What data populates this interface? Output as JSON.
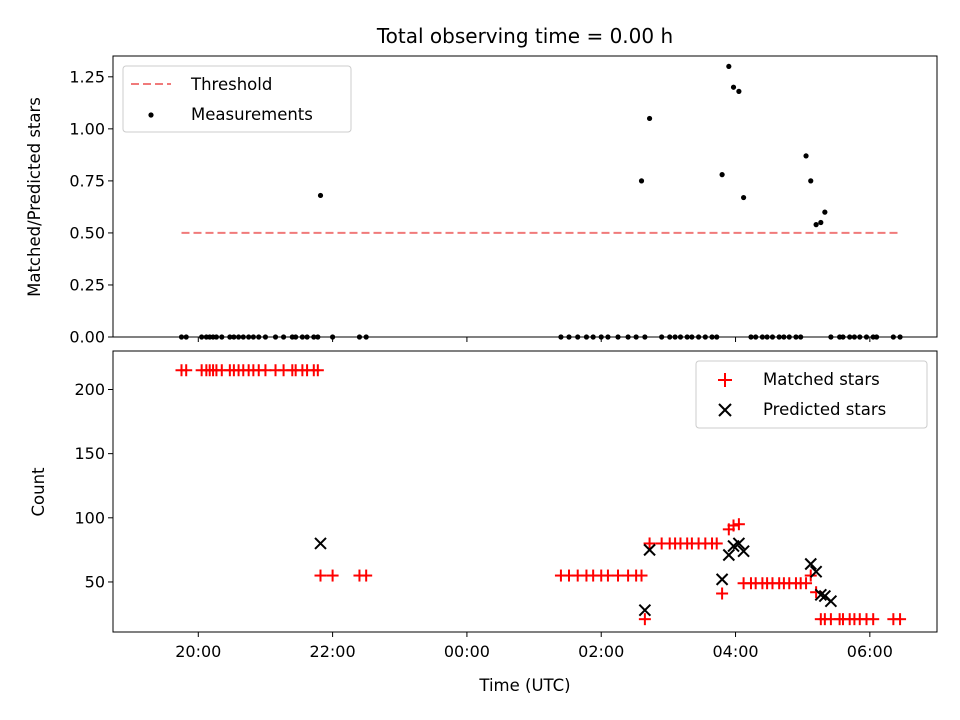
{
  "chart_data": [
    {
      "type": "scatter",
      "title": "Total observing time = 0.00 h",
      "xlabel": "",
      "ylabel": "Matched/Predicted stars",
      "xlim_hours": [
        18.73,
        31.0
      ],
      "ylim": [
        0,
        1.35
      ],
      "y_ticks": [
        0.0,
        0.25,
        0.5,
        0.75,
        1.0,
        1.25
      ],
      "y_tick_labels": [
        "0.00",
        "0.25",
        "0.50",
        "0.75",
        "1.00",
        "1.25"
      ],
      "legend": {
        "position": "top-left",
        "entries": [
          {
            "label": "Threshold",
            "style": "dashed-line",
            "color": "#f07a7a"
          },
          {
            "label": "Measurements",
            "style": "dot",
            "color": "#000000"
          }
        ]
      },
      "threshold": {
        "name": "Threshold",
        "y": 0.5,
        "x": [
          19.75,
          30.45
        ],
        "color": "#f07a7a"
      },
      "series": [
        {
          "name": "Measurements",
          "color": "#000000",
          "x": [
            19.75,
            19.82,
            20.05,
            20.12,
            20.17,
            20.22,
            20.27,
            20.35,
            20.47,
            20.53,
            20.6,
            20.67,
            20.75,
            20.82,
            20.9,
            21.0,
            21.15,
            21.27,
            21.4,
            21.45,
            21.55,
            21.62,
            21.72,
            21.78,
            21.82,
            22.0,
            22.4,
            22.5,
            24.0,
            25.4,
            25.52,
            25.65,
            25.78,
            25.88,
            26.0,
            26.1,
            26.25,
            26.4,
            26.52,
            26.6,
            26.65,
            26.72,
            26.9,
            27.02,
            27.1,
            27.18,
            27.28,
            27.35,
            27.45,
            27.55,
            27.65,
            27.72,
            27.8,
            27.9,
            27.97,
            28.05,
            28.12,
            28.23,
            28.3,
            28.4,
            28.47,
            28.55,
            28.65,
            28.72,
            28.8,
            28.9,
            28.97,
            29.05,
            29.12,
            29.2,
            29.27,
            29.33,
            29.42,
            29.55,
            29.6,
            29.7,
            29.77,
            29.85,
            29.95,
            30.05,
            30.1,
            30.35,
            30.45
          ],
          "y": [
            0,
            0,
            0,
            0,
            0,
            0,
            0,
            0,
            0,
            0,
            0,
            0,
            0,
            0,
            0,
            0,
            0,
            0,
            0,
            0,
            0,
            0,
            0,
            0,
            0.68,
            0,
            0,
            0,
            null,
            0,
            0,
            0,
            0,
            0,
            0,
            0,
            0,
            0,
            0,
            0.75,
            0,
            1.05,
            0,
            0,
            0,
            0,
            0,
            0,
            0,
            0,
            0,
            0,
            0.78,
            1.3,
            1.2,
            1.18,
            0.67,
            0,
            0,
            0,
            0,
            0,
            0,
            0,
            0,
            0,
            0,
            0.87,
            0.75,
            0.54,
            0.55,
            0.6,
            0,
            0,
            0,
            0,
            0,
            0,
            0,
            0,
            0,
            0,
            0
          ]
        }
      ]
    },
    {
      "type": "scatter",
      "title": "",
      "xlabel": "Time (UTC)",
      "ylabel": "Count",
      "xlim_hours": [
        18.73,
        31.0
      ],
      "ylim": [
        11,
        230
      ],
      "y_ticks": [
        50,
        100,
        150,
        200
      ],
      "y_tick_labels": [
        "50",
        "100",
        "150",
        "200"
      ],
      "x_ticks_hours": [
        20,
        22,
        24,
        26,
        28,
        30
      ],
      "x_tick_labels": [
        "20:00",
        "22:00",
        "00:00",
        "02:00",
        "04:00",
        "06:00"
      ],
      "legend": {
        "position": "top-right",
        "entries": [
          {
            "label": "Matched stars",
            "style": "plus",
            "color": "#ff0000"
          },
          {
            "label": "Predicted stars",
            "style": "x",
            "color": "#000000"
          }
        ]
      },
      "series": [
        {
          "name": "Matched stars",
          "marker": "plus",
          "color": "#ff0000",
          "x": [
            19.75,
            19.82,
            20.05,
            20.12,
            20.17,
            20.22,
            20.27,
            20.35,
            20.47,
            20.53,
            20.6,
            20.67,
            20.75,
            20.82,
            20.9,
            21.0,
            21.15,
            21.27,
            21.4,
            21.45,
            21.55,
            21.62,
            21.72,
            21.78,
            21.82,
            22.0,
            22.4,
            22.5,
            25.4,
            25.52,
            25.65,
            25.78,
            25.88,
            26.0,
            26.1,
            26.25,
            26.4,
            26.52,
            26.6,
            26.65,
            26.72,
            26.9,
            27.02,
            27.1,
            27.18,
            27.28,
            27.35,
            27.45,
            27.55,
            27.65,
            27.72,
            27.8,
            27.9,
            27.97,
            28.05,
            28.12,
            28.23,
            28.3,
            28.4,
            28.47,
            28.55,
            28.65,
            28.72,
            28.8,
            28.9,
            28.97,
            29.05,
            29.12,
            29.2,
            29.27,
            29.33,
            29.42,
            29.55,
            29.6,
            29.7,
            29.77,
            29.85,
            29.95,
            30.05,
            30.35,
            30.45
          ],
          "y": [
            215,
            215,
            215,
            215,
            215,
            215,
            215,
            215,
            215,
            215,
            215,
            215,
            215,
            215,
            215,
            215,
            215,
            215,
            215,
            215,
            215,
            215,
            215,
            215,
            55,
            55,
            55,
            55,
            55,
            55,
            55,
            55,
            55,
            55,
            55,
            55,
            55,
            55,
            55,
            21,
            80,
            80,
            80,
            80,
            80,
            80,
            80,
            80,
            80,
            80,
            80,
            41,
            91,
            94,
            95,
            49,
            49,
            49,
            49,
            49,
            49,
            49,
            49,
            49,
            49,
            49,
            49,
            55,
            42,
            21,
            21,
            21,
            21,
            21,
            21,
            21,
            21,
            21,
            21,
            21,
            21
          ]
        },
        {
          "name": "Predicted stars",
          "marker": "x",
          "color": "#000000",
          "x": [
            21.82,
            26.65,
            26.72,
            27.8,
            27.9,
            27.97,
            28.05,
            28.12,
            29.12,
            29.2,
            29.27,
            29.33,
            29.42
          ],
          "y": [
            80,
            28,
            75,
            52,
            71,
            78,
            80,
            74,
            64,
            58,
            40,
            39,
            35
          ]
        }
      ]
    }
  ]
}
